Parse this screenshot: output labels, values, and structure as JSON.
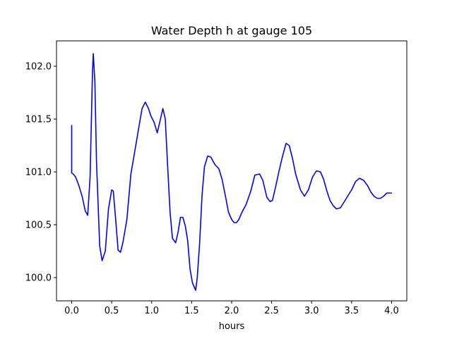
{
  "chart_data": {
    "type": "line",
    "title": "Water Depth h at gauge 105",
    "xlabel": "hours",
    "ylabel": "",
    "xlim": [
      -0.19,
      4.19
    ],
    "ylim": [
      99.78,
      102.24
    ],
    "xticks": [
      0.0,
      0.5,
      1.0,
      1.5,
      2.0,
      2.5,
      3.0,
      3.5,
      4.0
    ],
    "xtick_labels": [
      "0.0",
      "0.5",
      "1.0",
      "1.5",
      "2.0",
      "2.5",
      "3.0",
      "3.5",
      "4.0"
    ],
    "yticks": [
      100.0,
      100.5,
      101.0,
      101.5,
      102.0
    ],
    "ytick_labels": [
      "100.0",
      "100.5",
      "101.0",
      "101.5",
      "102.0"
    ],
    "grid": false,
    "colors": {
      "line": "#0000ff",
      "axes": "#000000",
      "background": "#ffffff"
    },
    "series": [
      {
        "x": [
          0.0,
          0.0,
          0.02,
          0.05,
          0.09,
          0.13,
          0.17,
          0.2,
          0.23,
          0.26,
          0.27,
          0.29,
          0.31,
          0.35,
          0.38,
          0.42,
          0.46,
          0.5,
          0.52,
          0.55,
          0.58,
          0.61,
          0.64,
          0.69,
          0.74,
          0.79,
          0.83,
          0.88,
          0.92,
          0.96,
          0.99,
          1.03,
          1.07,
          1.11,
          1.14,
          1.17,
          1.2,
          1.23,
          1.26,
          1.3,
          1.33,
          1.36,
          1.39,
          1.42,
          1.45,
          1.48,
          1.51,
          1.55,
          1.57,
          1.6,
          1.63,
          1.66,
          1.7,
          1.74,
          1.79,
          1.84,
          1.88,
          1.92,
          1.96,
          2.0,
          2.03,
          2.06,
          2.09,
          2.13,
          2.18,
          2.24,
          2.29,
          2.35,
          2.39,
          2.44,
          2.48,
          2.51,
          2.55,
          2.59,
          2.63,
          2.68,
          2.72,
          2.76,
          2.8,
          2.86,
          2.91,
          2.96,
          3.01,
          3.06,
          3.11,
          3.15,
          3.19,
          3.23,
          3.27,
          3.31,
          3.36,
          3.41,
          3.45,
          3.5,
          3.55,
          3.6,
          3.65,
          3.7,
          3.74,
          3.78,
          3.82,
          3.86,
          3.9,
          3.94,
          3.98,
          4.0
        ],
        "y": [
          101.44,
          100.99,
          100.98,
          100.95,
          100.87,
          100.77,
          100.63,
          100.59,
          100.95,
          101.95,
          102.12,
          101.85,
          101.1,
          100.3,
          100.16,
          100.25,
          100.65,
          100.83,
          100.82,
          100.55,
          100.26,
          100.24,
          100.33,
          100.55,
          100.98,
          101.2,
          101.38,
          101.6,
          101.66,
          101.6,
          101.53,
          101.47,
          101.37,
          101.5,
          101.6,
          101.5,
          101.05,
          100.62,
          100.37,
          100.33,
          100.43,
          100.57,
          100.57,
          100.49,
          100.35,
          100.08,
          99.95,
          99.88,
          100.0,
          100.33,
          100.78,
          101.05,
          101.15,
          101.14,
          101.07,
          101.03,
          100.93,
          100.78,
          100.62,
          100.55,
          100.52,
          100.52,
          100.55,
          100.62,
          100.69,
          100.82,
          100.97,
          100.98,
          100.92,
          100.76,
          100.72,
          100.73,
          100.86,
          101.0,
          101.13,
          101.27,
          101.25,
          101.13,
          100.98,
          100.83,
          100.77,
          100.83,
          100.95,
          101.01,
          101.0,
          100.93,
          100.82,
          100.73,
          100.68,
          100.65,
          100.66,
          100.72,
          100.77,
          100.83,
          100.91,
          100.94,
          100.92,
          100.87,
          100.81,
          100.77,
          100.75,
          100.75,
          100.77,
          100.8,
          100.8,
          100.8
        ]
      }
    ]
  }
}
